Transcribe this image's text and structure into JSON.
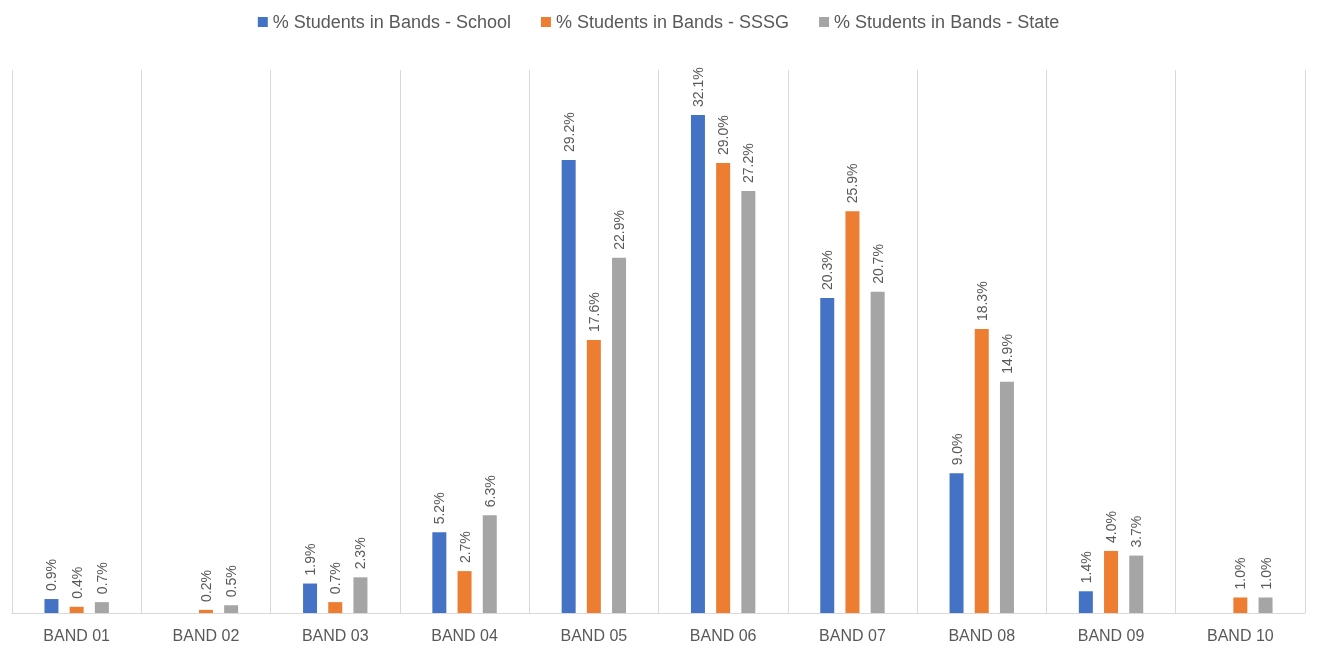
{
  "chart_data": {
    "type": "bar",
    "categories": [
      "BAND 01",
      "BAND 02",
      "BAND 03",
      "BAND 04",
      "BAND 05",
      "BAND 06",
      "BAND 07",
      "BAND 08",
      "BAND 09",
      "BAND 10"
    ],
    "series": [
      {
        "name": "% Students in Bands - School",
        "color": "#4472c4",
        "values": [
          0.9,
          null,
          1.9,
          5.2,
          29.2,
          32.1,
          20.3,
          9.0,
          1.4,
          null
        ],
        "value_labels": [
          "0.9%",
          null,
          "1.9%",
          "5.2%",
          "29.2%",
          "32.1%",
          "20.3%",
          "9.0%",
          "1.4%",
          null
        ]
      },
      {
        "name": "% Students in Bands - SSSG",
        "color": "#ed7d31",
        "values": [
          0.4,
          0.2,
          0.7,
          2.7,
          17.6,
          29.0,
          25.9,
          18.3,
          4.0,
          1.0
        ],
        "value_labels": [
          "0.4%",
          "0.2%",
          "0.7%",
          "2.7%",
          "17.6%",
          "29.0%",
          "25.9%",
          "18.3%",
          "4.0%",
          "1.0%"
        ]
      },
      {
        "name": "% Students in Bands - State",
        "color": "#a5a5a5",
        "values": [
          0.7,
          0.5,
          2.3,
          6.3,
          22.9,
          27.2,
          20.7,
          14.9,
          3.7,
          1.0
        ],
        "value_labels": [
          "0.7%",
          "0.5%",
          "2.3%",
          "6.3%",
          "22.9%",
          "27.2%",
          "20.7%",
          "14.9%",
          "3.7%",
          "1.0%"
        ]
      }
    ],
    "grid": "x",
    "legend": "top",
    "tick_labels": "x"
  }
}
